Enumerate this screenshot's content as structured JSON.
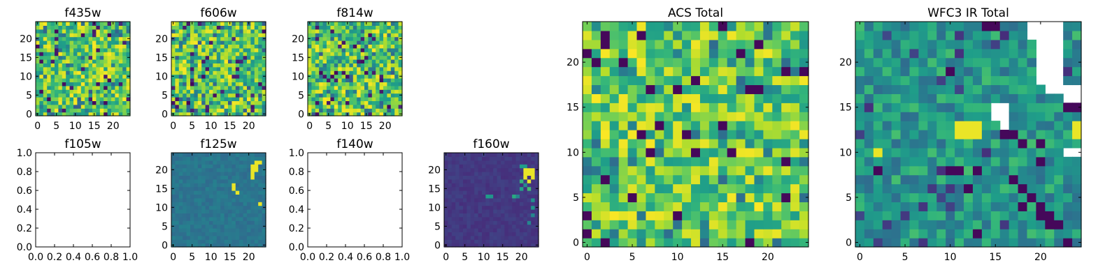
{
  "figure": {
    "background": "#ffffff",
    "frame_color": "#000000"
  },
  "chart_data": [
    {
      "id": "f435w",
      "type": "heatmap",
      "title": "f435w",
      "colormap": "viridis",
      "xlim": [
        -0.5,
        24.5
      ],
      "ylim": [
        -0.5,
        24.5
      ],
      "xticks": [
        "0",
        "5",
        "10",
        "15",
        "20"
      ],
      "yticks": [
        "0",
        "5",
        "10",
        "15",
        "20"
      ],
      "image": "noise-high",
      "seed": 11
    },
    {
      "id": "f606w",
      "type": "heatmap",
      "title": "f606w",
      "colormap": "viridis",
      "xlim": [
        -0.5,
        24.5
      ],
      "ylim": [
        -0.5,
        24.5
      ],
      "xticks": [
        "0",
        "5",
        "10",
        "15",
        "20"
      ],
      "yticks": [
        "0",
        "5",
        "10",
        "15",
        "20"
      ],
      "image": "noise-high",
      "seed": 23
    },
    {
      "id": "f814w",
      "type": "heatmap",
      "title": "f814w",
      "colormap": "viridis",
      "xlim": [
        -0.5,
        24.5
      ],
      "ylim": [
        -0.5,
        24.5
      ],
      "xticks": [
        "0",
        "5",
        "10",
        "15",
        "20"
      ],
      "yticks": [
        "0",
        "5",
        "10",
        "15",
        "20"
      ],
      "image": "noise-high",
      "seed": 37
    },
    {
      "id": "f105w",
      "type": "empty",
      "title": "f105w",
      "xlim": [
        0,
        1
      ],
      "ylim": [
        0,
        1
      ],
      "xticks": [
        "0.0",
        "0.2",
        "0.4",
        "0.6",
        "0.8",
        "1.0"
      ],
      "yticks": [
        "0.0",
        "0.2",
        "0.4",
        "0.6",
        "0.8",
        "1.0"
      ]
    },
    {
      "id": "f125w",
      "type": "heatmap",
      "title": "f125w",
      "colormap": "viridis",
      "xlim": [
        -0.5,
        24.5
      ],
      "ylim": [
        -0.5,
        24.5
      ],
      "xticks": [
        "0",
        "5",
        "10",
        "15",
        "20"
      ],
      "yticks": [
        "0",
        "5",
        "10",
        "15",
        "20"
      ],
      "image": "flat-mid",
      "seed": 41,
      "bright_pixels": [
        [
          22,
          21
        ],
        [
          22,
          22
        ],
        [
          23,
          22
        ],
        [
          22,
          20
        ],
        [
          21,
          20
        ],
        [
          21,
          21
        ],
        [
          16,
          16
        ],
        [
          16,
          15
        ],
        [
          17,
          14
        ],
        [
          23,
          11
        ],
        [
          21,
          18
        ],
        [
          21,
          19
        ]
      ]
    },
    {
      "id": "f140w",
      "type": "empty",
      "title": "f140w",
      "xlim": [
        0,
        1
      ],
      "ylim": [
        0,
        1
      ],
      "xticks": [
        "0.0",
        "0.2",
        "0.4",
        "0.6",
        "0.8",
        "1.0"
      ],
      "yticks": [
        "0.0",
        "0.2",
        "0.4",
        "0.6",
        "0.8",
        "1.0"
      ]
    },
    {
      "id": "f160w",
      "type": "heatmap",
      "title": "f160w",
      "colormap": "viridis",
      "xlim": [
        -0.5,
        24.5
      ],
      "ylim": [
        -0.5,
        24.5
      ],
      "xticks": [
        "0",
        "5",
        "10",
        "15",
        "20"
      ],
      "yticks": [
        "0",
        "5",
        "10",
        "15",
        "20"
      ],
      "image": "flat-low",
      "seed": 53,
      "bright_pixels": [
        [
          21,
          20
        ],
        [
          22,
          20
        ],
        [
          23,
          20
        ],
        [
          21,
          19
        ],
        [
          22,
          19
        ],
        [
          23,
          19
        ],
        [
          21,
          18
        ],
        [
          23,
          18
        ],
        [
          22,
          17
        ]
      ],
      "mid_pixels": [
        [
          20,
          21
        ],
        [
          21,
          21
        ],
        [
          20,
          17
        ],
        [
          21,
          16
        ],
        [
          20,
          15
        ],
        [
          22,
          15
        ],
        [
          23,
          12
        ],
        [
          23,
          10
        ],
        [
          22,
          6
        ],
        [
          23,
          8
        ],
        [
          18,
          13
        ],
        [
          19,
          13
        ],
        [
          12,
          13
        ],
        [
          11,
          13
        ]
      ]
    },
    {
      "id": "acs_total",
      "type": "heatmap",
      "title": "ACS Total",
      "colormap": "viridis",
      "xlim": [
        -0.5,
        24.5
      ],
      "ylim": [
        -0.5,
        24.5
      ],
      "xticks": [
        "0",
        "5",
        "10",
        "15",
        "20"
      ],
      "yticks": [
        "0",
        "5",
        "10",
        "15",
        "20"
      ],
      "image": "noise-high-coarse",
      "seed": 67
    },
    {
      "id": "wfc3_ir_total",
      "type": "heatmap",
      "title": "WFC3 IR Total",
      "colormap": "viridis",
      "xlim": [
        -0.5,
        24.5
      ],
      "ylim": [
        -0.5,
        24.5
      ],
      "xticks": [
        "0",
        "5",
        "10",
        "15",
        "20"
      ],
      "yticks": [
        "0",
        "5",
        "10",
        "15",
        "20"
      ],
      "image": "noise-mid-coarse",
      "seed": 79,
      "nan_pixels": [
        [
          19,
          24
        ],
        [
          20,
          24
        ],
        [
          21,
          24
        ],
        [
          22,
          24
        ],
        [
          19,
          23
        ],
        [
          20,
          23
        ],
        [
          21,
          23
        ],
        [
          22,
          23
        ],
        [
          20,
          22
        ],
        [
          21,
          22
        ],
        [
          22,
          22
        ],
        [
          20,
          21
        ],
        [
          21,
          21
        ],
        [
          22,
          21
        ],
        [
          20,
          20
        ],
        [
          21,
          20
        ],
        [
          22,
          20
        ],
        [
          20,
          19
        ],
        [
          21,
          19
        ],
        [
          22,
          19
        ],
        [
          20,
          18
        ],
        [
          21,
          18
        ],
        [
          22,
          18
        ],
        [
          21,
          17
        ],
        [
          22,
          17
        ],
        [
          23,
          17
        ],
        [
          24,
          17
        ],
        [
          23,
          16
        ],
        [
          24,
          16
        ],
        [
          15,
          15
        ],
        [
          16,
          15
        ],
        [
          15,
          14
        ],
        [
          16,
          14
        ],
        [
          16,
          13
        ],
        [
          23,
          10
        ],
        [
          24,
          10
        ]
      ],
      "bright_pixels": [
        [
          11,
          12
        ],
        [
          12,
          12
        ],
        [
          13,
          12
        ],
        [
          11,
          13
        ],
        [
          12,
          13
        ],
        [
          13,
          13
        ],
        [
          2,
          10
        ],
        [
          24,
          12
        ],
        [
          24,
          13
        ]
      ],
      "dark_pixels": [
        [
          14,
          24
        ],
        [
          15,
          24
        ],
        [
          10,
          19
        ],
        [
          23,
          15
        ],
        [
          24,
          15
        ],
        [
          16,
          12
        ],
        [
          17,
          12
        ],
        [
          18,
          11
        ],
        [
          20,
          11
        ],
        [
          2,
          8
        ],
        [
          10,
          8
        ],
        [
          11,
          8
        ],
        [
          13,
          8
        ],
        [
          12,
          6
        ],
        [
          18,
          6
        ],
        [
          18,
          4
        ],
        [
          20,
          4
        ],
        [
          20,
          3
        ],
        [
          21,
          3
        ],
        [
          22,
          2
        ],
        [
          21,
          2
        ],
        [
          13,
          1
        ],
        [
          23,
          0
        ],
        [
          19,
          5
        ],
        [
          17,
          7
        ],
        [
          20,
          9
        ]
      ]
    }
  ]
}
